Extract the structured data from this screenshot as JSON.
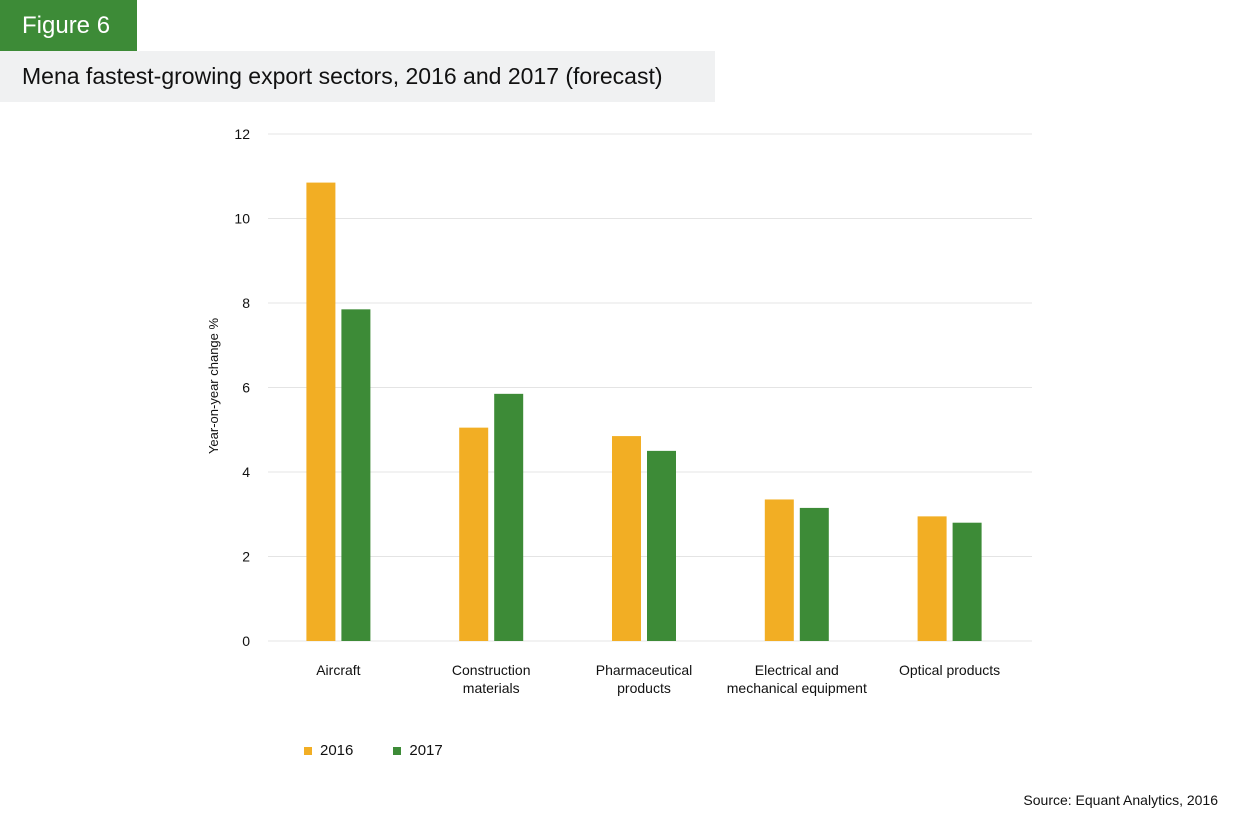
{
  "header": {
    "figure_label": "Figure 6",
    "title": "Mena fastest-growing export sectors, 2016 and 2017 (forecast)"
  },
  "source": "Source: Equant Analytics, 2016",
  "colors": {
    "brand_green": "#3d8b37",
    "series_2016": "#f2ae24",
    "series_2017": "#3d8b37",
    "title_bg": "#f0f1f2",
    "gridline": "#e4e4e4"
  },
  "chart_data": {
    "type": "bar",
    "title": "Mena fastest-growing export sectors, 2016 and 2017 (forecast)",
    "xlabel": "",
    "ylabel": "Year-on-year change %",
    "ylim": [
      0,
      12
    ],
    "yticks": [
      "0",
      "2",
      "4",
      "6",
      "8",
      "10",
      "12"
    ],
    "grid": true,
    "legend_position": "bottom-left",
    "categories": [
      [
        "Aircraft"
      ],
      [
        "Construction",
        "materials"
      ],
      [
        "Pharmaceutical",
        "products"
      ],
      [
        "Electrical and",
        "mechanical equipment"
      ],
      [
        "Optical products"
      ]
    ],
    "series": [
      {
        "name": "2016",
        "color": "#f2ae24",
        "values": [
          10.85,
          5.05,
          4.85,
          3.35,
          2.95
        ]
      },
      {
        "name": "2017",
        "color": "#3d8b37",
        "values": [
          7.85,
          5.85,
          4.5,
          3.15,
          2.8
        ]
      }
    ]
  }
}
